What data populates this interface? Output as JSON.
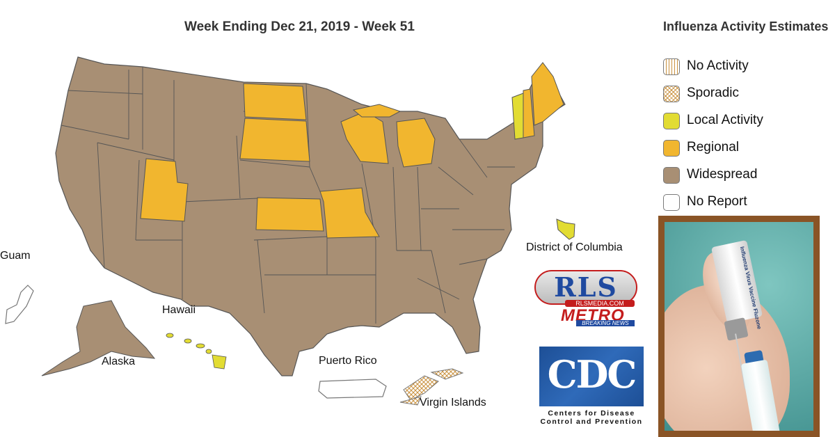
{
  "map": {
    "title": "Week Ending Dec 21, 2019 - Week 51",
    "legend_title": "Influenza Activity Estimates",
    "legend": [
      {
        "label": "No Activity",
        "pattern": "vertical-lines"
      },
      {
        "label": "Sporadic",
        "pattern": "crosshatch"
      },
      {
        "label": "Local Activity",
        "color": "#e2dc33"
      },
      {
        "label": "Regional",
        "color": "#f1b62f"
      },
      {
        "label": "Widespread",
        "color": "#a88f74"
      },
      {
        "label": "No Report",
        "color": "#ffffff"
      }
    ],
    "colors": {
      "widespread": "#a88f74",
      "regional": "#f1b62f",
      "local": "#e2dc33",
      "no_report": "#ffffff",
      "sporadic_line": "#c9913f",
      "border": "#555555"
    },
    "labels": {
      "guam": "Guam",
      "hawaii": "Hawaii",
      "alaska": "Alaska",
      "puerto_rico": "Puerto Rico",
      "virgin_islands": "Virgin Islands",
      "dc": "District of Columbia"
    }
  },
  "logos": {
    "rls": {
      "main": "RLS",
      "site": "RLSMEDIA.COM",
      "metro": "METRO",
      "breaking": "BREAKING NEWS"
    },
    "cdc": {
      "letters": "CDC",
      "line1": "Centers for Disease",
      "line2": "Control and Prevention"
    }
  },
  "photo": {
    "vial_label": "Influenza Virus Vaccine Fluzone"
  }
}
